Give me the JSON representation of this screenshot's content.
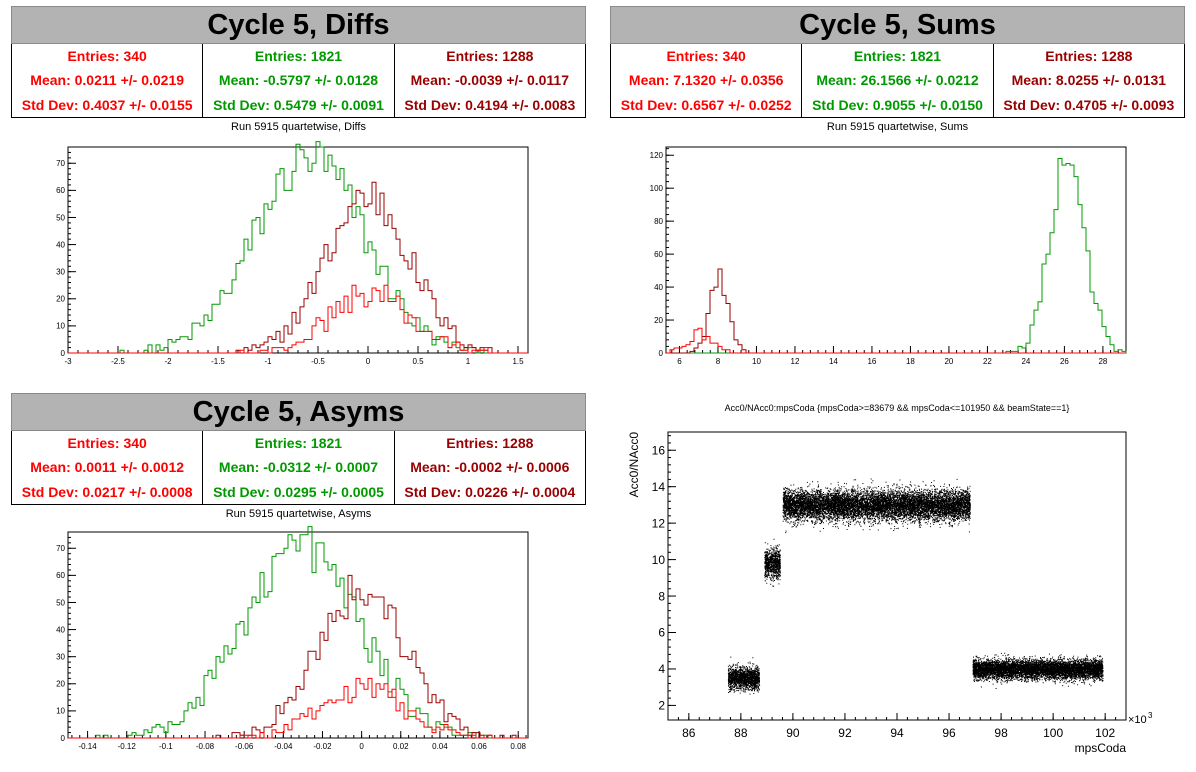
{
  "colors": {
    "red": "#ff0000",
    "green": "#009900",
    "darkred": "#990000"
  },
  "panels": [
    {
      "id": "diffs",
      "title": "Cycle 5, Diffs",
      "stats": [
        {
          "color": "red",
          "entries": "Entries: 340",
          "mean": "Mean: 0.0211 +/- 0.0219",
          "std": "Std Dev: 0.4037 +/- 0.0155"
        },
        {
          "color": "green",
          "entries": "Entries: 1821",
          "mean": "Mean: -0.5797 +/- 0.0128",
          "std": "Std Dev: 0.5479 +/- 0.0091"
        },
        {
          "color": "darkred",
          "entries": "Entries: 1288",
          "mean": "Mean: -0.0039 +/- 0.0117",
          "std": "Std Dev: 0.4194 +/- 0.0083"
        }
      ],
      "subtitle": "Run 5915 quartetwise, Diffs"
    },
    {
      "id": "sums",
      "title": "Cycle 5, Sums",
      "stats": [
        {
          "color": "red",
          "entries": "Entries: 340",
          "mean": "Mean: 7.1320 +/- 0.0356",
          "std": "Std Dev: 0.6567 +/- 0.0252"
        },
        {
          "color": "green",
          "entries": "Entries: 1821",
          "mean": "Mean: 26.1566 +/- 0.0212",
          "std": "Std Dev: 0.9055 +/- 0.0150"
        },
        {
          "color": "darkred",
          "entries": "Entries: 1288",
          "mean": "Mean: 8.0255 +/- 0.0131",
          "std": "Std Dev: 0.4705 +/- 0.0093"
        }
      ],
      "subtitle": "Run 5915 quartetwise, Sums"
    },
    {
      "id": "asyms",
      "title": "Cycle 5, Asyms",
      "stats": [
        {
          "color": "red",
          "entries": "Entries: 340",
          "mean": "Mean: 0.0011 +/- 0.0012",
          "std": "Std Dev: 0.0217 +/- 0.0008"
        },
        {
          "color": "green",
          "entries": "Entries: 1821",
          "mean": "Mean: -0.0312 +/- 0.0007",
          "std": "Std Dev: 0.0295 +/- 0.0005"
        },
        {
          "color": "darkred",
          "entries": "Entries: 1288",
          "mean": "Mean: -0.0002 +/- 0.0006",
          "std": "Std Dev: 0.0226 +/- 0.0004"
        }
      ],
      "subtitle": "Run 5915 quartetwise, Asyms"
    }
  ],
  "chart_data": [
    {
      "type": "histogram",
      "id": "diffs",
      "xlim": [
        -3,
        1.6
      ],
      "ylim": [
        0,
        76
      ],
      "xticks": [
        -3,
        -2.5,
        -2,
        -1.5,
        -1,
        -0.5,
        0,
        0.5,
        1,
        1.5
      ],
      "yticks": [
        0,
        10,
        20,
        30,
        40,
        50,
        60,
        70
      ],
      "series": [
        {
          "color": "green",
          "mean": -0.58,
          "std": 0.55,
          "entries": 1821,
          "peak": 72
        },
        {
          "color": "darkred",
          "mean": 0.0,
          "std": 0.42,
          "entries": 1288,
          "peak": 58
        },
        {
          "color": "red",
          "mean": 0.02,
          "std": 0.4,
          "entries": 340,
          "peak": 22
        }
      ]
    },
    {
      "type": "histogram",
      "id": "sums",
      "xlim": [
        5.3,
        29.2
      ],
      "ylim": [
        0,
        125
      ],
      "xticks": [
        6,
        8,
        10,
        12,
        14,
        16,
        18,
        20,
        22,
        24,
        26,
        28
      ],
      "yticks": [
        0,
        20,
        40,
        60,
        80,
        100,
        120
      ],
      "series": [
        {
          "color": "green",
          "mean": 26.16,
          "std": 0.9,
          "entries": 1821,
          "peak": 120
        },
        {
          "color": "darkred",
          "mean": 8.03,
          "std": 0.47,
          "entries": 1288,
          "peak": 48
        },
        {
          "color": "red",
          "mean": 7.13,
          "std": 0.66,
          "entries": 340,
          "peak": 12
        }
      ]
    },
    {
      "type": "histogram",
      "id": "asyms",
      "xlim": [
        -0.15,
        0.085
      ],
      "ylim": [
        0,
        76
      ],
      "xticks": [
        -0.14,
        -0.12,
        -0.1,
        -0.08,
        -0.06,
        -0.04,
        -0.02,
        0,
        0.02,
        0.04,
        0.06,
        0.08
      ],
      "yticks": [
        0,
        10,
        20,
        30,
        40,
        50,
        60,
        70
      ],
      "series": [
        {
          "color": "green",
          "mean": -0.031,
          "std": 0.0295,
          "entries": 1821,
          "peak": 71
        },
        {
          "color": "darkred",
          "mean": 0.0,
          "std": 0.0226,
          "entries": 1288,
          "peak": 55
        },
        {
          "color": "red",
          "mean": 0.001,
          "std": 0.0217,
          "entries": 340,
          "peak": 18
        }
      ]
    },
    {
      "type": "scatter",
      "id": "scatter",
      "title": "Acc0/NAcc0:mpsCoda {mpsCoda>=83679 && mpsCoda<=101950 && beamState==1}",
      "xlabel": "mpsCoda",
      "ylabel": "Acc0/NAcc0",
      "xexponent": "×10",
      "xexponent_power": "3",
      "xlim": [
        85.2,
        102.8
      ],
      "ylim": [
        1.2,
        17.0
      ],
      "xticks": [
        86,
        88,
        90,
        92,
        94,
        96,
        98,
        100,
        102
      ],
      "yticks": [
        2,
        4,
        6,
        8,
        10,
        12,
        14,
        16
      ],
      "clusters": [
        {
          "x": [
            87.5,
            88.7
          ],
          "y": 3.5,
          "spread": 0.4
        },
        {
          "x": [
            88.9,
            89.5
          ],
          "y": 9.8,
          "spread": 0.55
        },
        {
          "x": [
            89.6,
            96.8
          ],
          "y": 13.0,
          "spread": 0.55
        },
        {
          "x": [
            96.9,
            101.9
          ],
          "y": 4.0,
          "spread": 0.35
        }
      ]
    }
  ]
}
